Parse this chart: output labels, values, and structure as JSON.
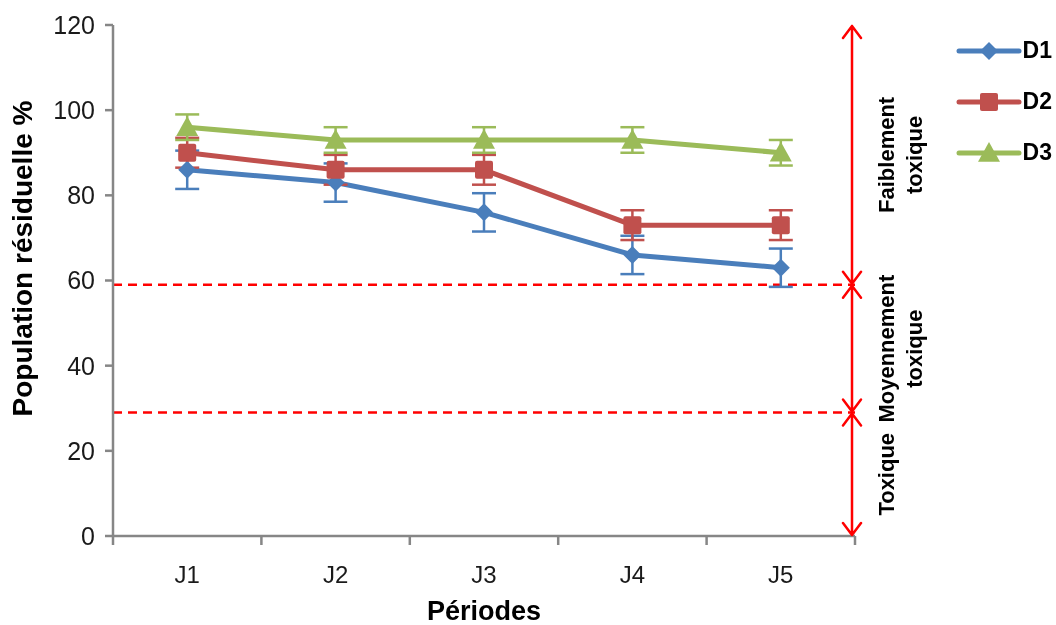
{
  "chart_data": {
    "type": "line",
    "xlabel": "Périodes",
    "ylabel": "Population résiduelle %",
    "categories": [
      "J1",
      "J2",
      "J3",
      "J4",
      "J5"
    ],
    "series": [
      {
        "name": "D1",
        "color": "#4a7ebb",
        "marker": "diamond",
        "values": [
          86,
          83,
          76,
          66,
          63
        ],
        "errors": [
          4.5,
          4.5,
          4.5,
          4.5,
          4.5
        ]
      },
      {
        "name": "D2",
        "color": "#c0504d",
        "marker": "square",
        "values": [
          90,
          86,
          86,
          73,
          73
        ],
        "errors": [
          3.5,
          3.5,
          3.5,
          3.5,
          3.5
        ]
      },
      {
        "name": "D3",
        "color": "#9bbb59",
        "marker": "triangle",
        "values": [
          96,
          93,
          93,
          93,
          90
        ],
        "errors": [
          3,
          3,
          3,
          3,
          3
        ]
      }
    ],
    "ylim": [
      0,
      120
    ],
    "yticks": [
      0,
      20,
      40,
      60,
      80,
      100,
      120
    ],
    "ref_lines": [
      {
        "axis": "y",
        "value": 59,
        "color": "#ff0000",
        "line_style": "dashed"
      },
      {
        "axis": "y",
        "value": 29,
        "color": "#ff0000",
        "line_style": "dashed"
      }
    ],
    "annotations": [
      "Faiblement toxique",
      "Moyennement toxique",
      "Toxique"
    ],
    "legend": "top right"
  }
}
